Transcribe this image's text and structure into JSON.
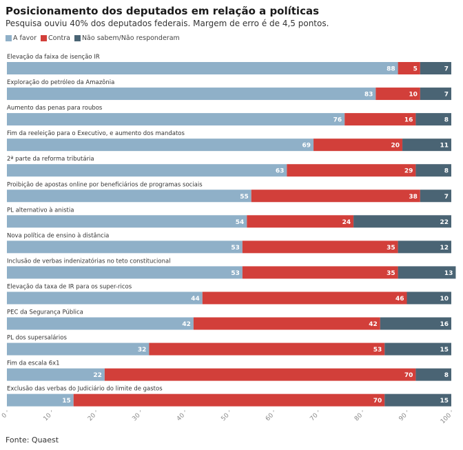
{
  "chart_data": {
    "type": "bar",
    "orientation": "horizontal",
    "stacked": true,
    "title": "Posicionamento dos deputados em relação a políticas",
    "subtitle": "Pesquisa ouviu 40% dos deputados federais. Margem de erro é de 4,5 pontos.",
    "source": "Fonte: Quaest",
    "legend_position": "top-left",
    "xlim": [
      0,
      100
    ],
    "ticks": [
      "0",
      "10",
      "20",
      "30",
      "40",
      "50",
      "60",
      "70",
      "80",
      "90",
      "100"
    ],
    "tick_values": [
      0,
      10,
      20,
      30,
      40,
      50,
      60,
      70,
      80,
      90,
      100
    ],
    "categories": [
      "Elevação da faixa de isenção IR",
      "Exploração do petróleo da Amazônia",
      "Aumento das penas para roubos",
      "Fim da reeleição para o Executivo, e aumento dos mandatos",
      "2ª parte da reforma tributária",
      "Proibição de apostas online por beneficiários de programas sociais",
      "PL alternativo à anistia",
      "Nova política de ensino à distância",
      "Inclusão de verbas indenizatórias no teto constitucional",
      "Elevação da taxa de IR para os super-ricos",
      "PEC da Segurança Pública",
      "PL dos supersalários",
      "Fim da escala 6x1",
      "Exclusão das verbas do Judiciário do limite de gastos"
    ],
    "series": [
      {
        "name": "A favor",
        "color": "#8fb0c8",
        "values": [
          88,
          83,
          76,
          69,
          63,
          55,
          54,
          53,
          53,
          44,
          42,
          32,
          22,
          15
        ]
      },
      {
        "name": "Contra",
        "color": "#d23f3a",
        "values": [
          5,
          10,
          16,
          20,
          29,
          38,
          24,
          35,
          35,
          46,
          42,
          53,
          70,
          70
        ]
      },
      {
        "name": "Não sabem/Não responderam",
        "color": "#4a6474",
        "values": [
          7,
          7,
          8,
          11,
          8,
          7,
          22,
          12,
          13,
          10,
          16,
          15,
          8,
          15
        ]
      }
    ]
  }
}
